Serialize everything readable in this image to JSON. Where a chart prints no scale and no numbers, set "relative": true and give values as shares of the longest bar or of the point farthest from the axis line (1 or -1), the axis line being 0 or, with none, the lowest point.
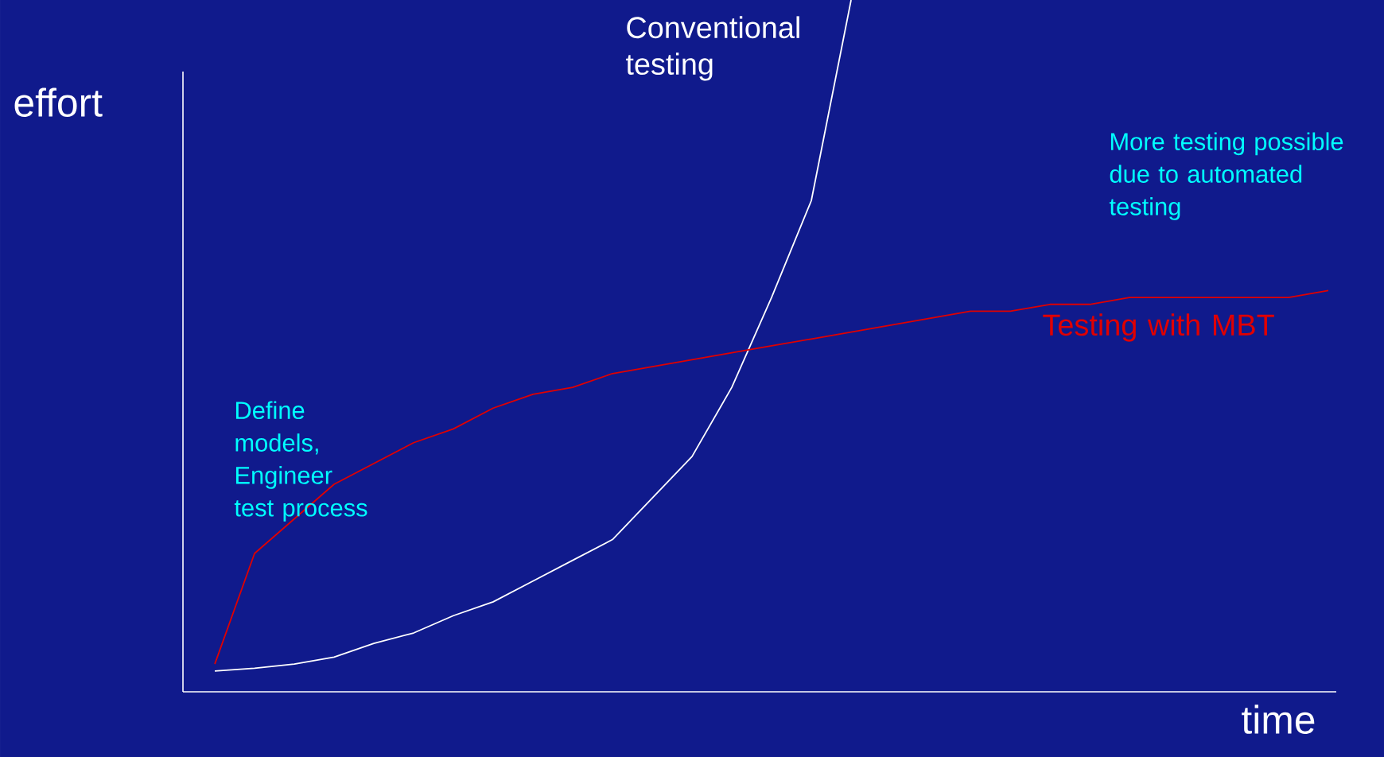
{
  "chart_data": {
    "type": "line",
    "relative": true,
    "xlabel": "time",
    "ylabel": "effort",
    "categories": [
      null,
      null,
      null,
      null,
      null,
      null,
      null,
      null,
      null,
      null,
      null,
      null,
      null,
      null,
      null,
      null,
      null,
      null,
      null,
      null,
      null,
      null,
      null,
      null,
      null,
      null,
      null,
      null,
      null
    ],
    "series": [
      {
        "name": "Conventional testing",
        "color": "#ffffff",
        "values": [
          0.03,
          0.034,
          0.04,
          0.05,
          0.07,
          0.085,
          0.11,
          0.13,
          0.16,
          0.19,
          0.22,
          0.28,
          0.34,
          0.44,
          0.57,
          0.71,
          1.0,
          null,
          null,
          null,
          null,
          null,
          null,
          null,
          null,
          null,
          null,
          null,
          null
        ]
      },
      {
        "name": "Testing with MBT",
        "color": "#e00000",
        "values": [
          0.04,
          0.2,
          0.25,
          0.3,
          0.33,
          0.36,
          0.38,
          0.41,
          0.43,
          0.44,
          0.46,
          0.47,
          0.48,
          0.49,
          0.5,
          0.51,
          0.52,
          0.53,
          0.54,
          0.55,
          0.55,
          0.56,
          0.56,
          0.57,
          0.57,
          0.57,
          0.57,
          0.57,
          0.58
        ]
      }
    ],
    "annotations": [
      "Define models, Engineer test process",
      "More testing possible due to automated testing"
    ]
  }
}
